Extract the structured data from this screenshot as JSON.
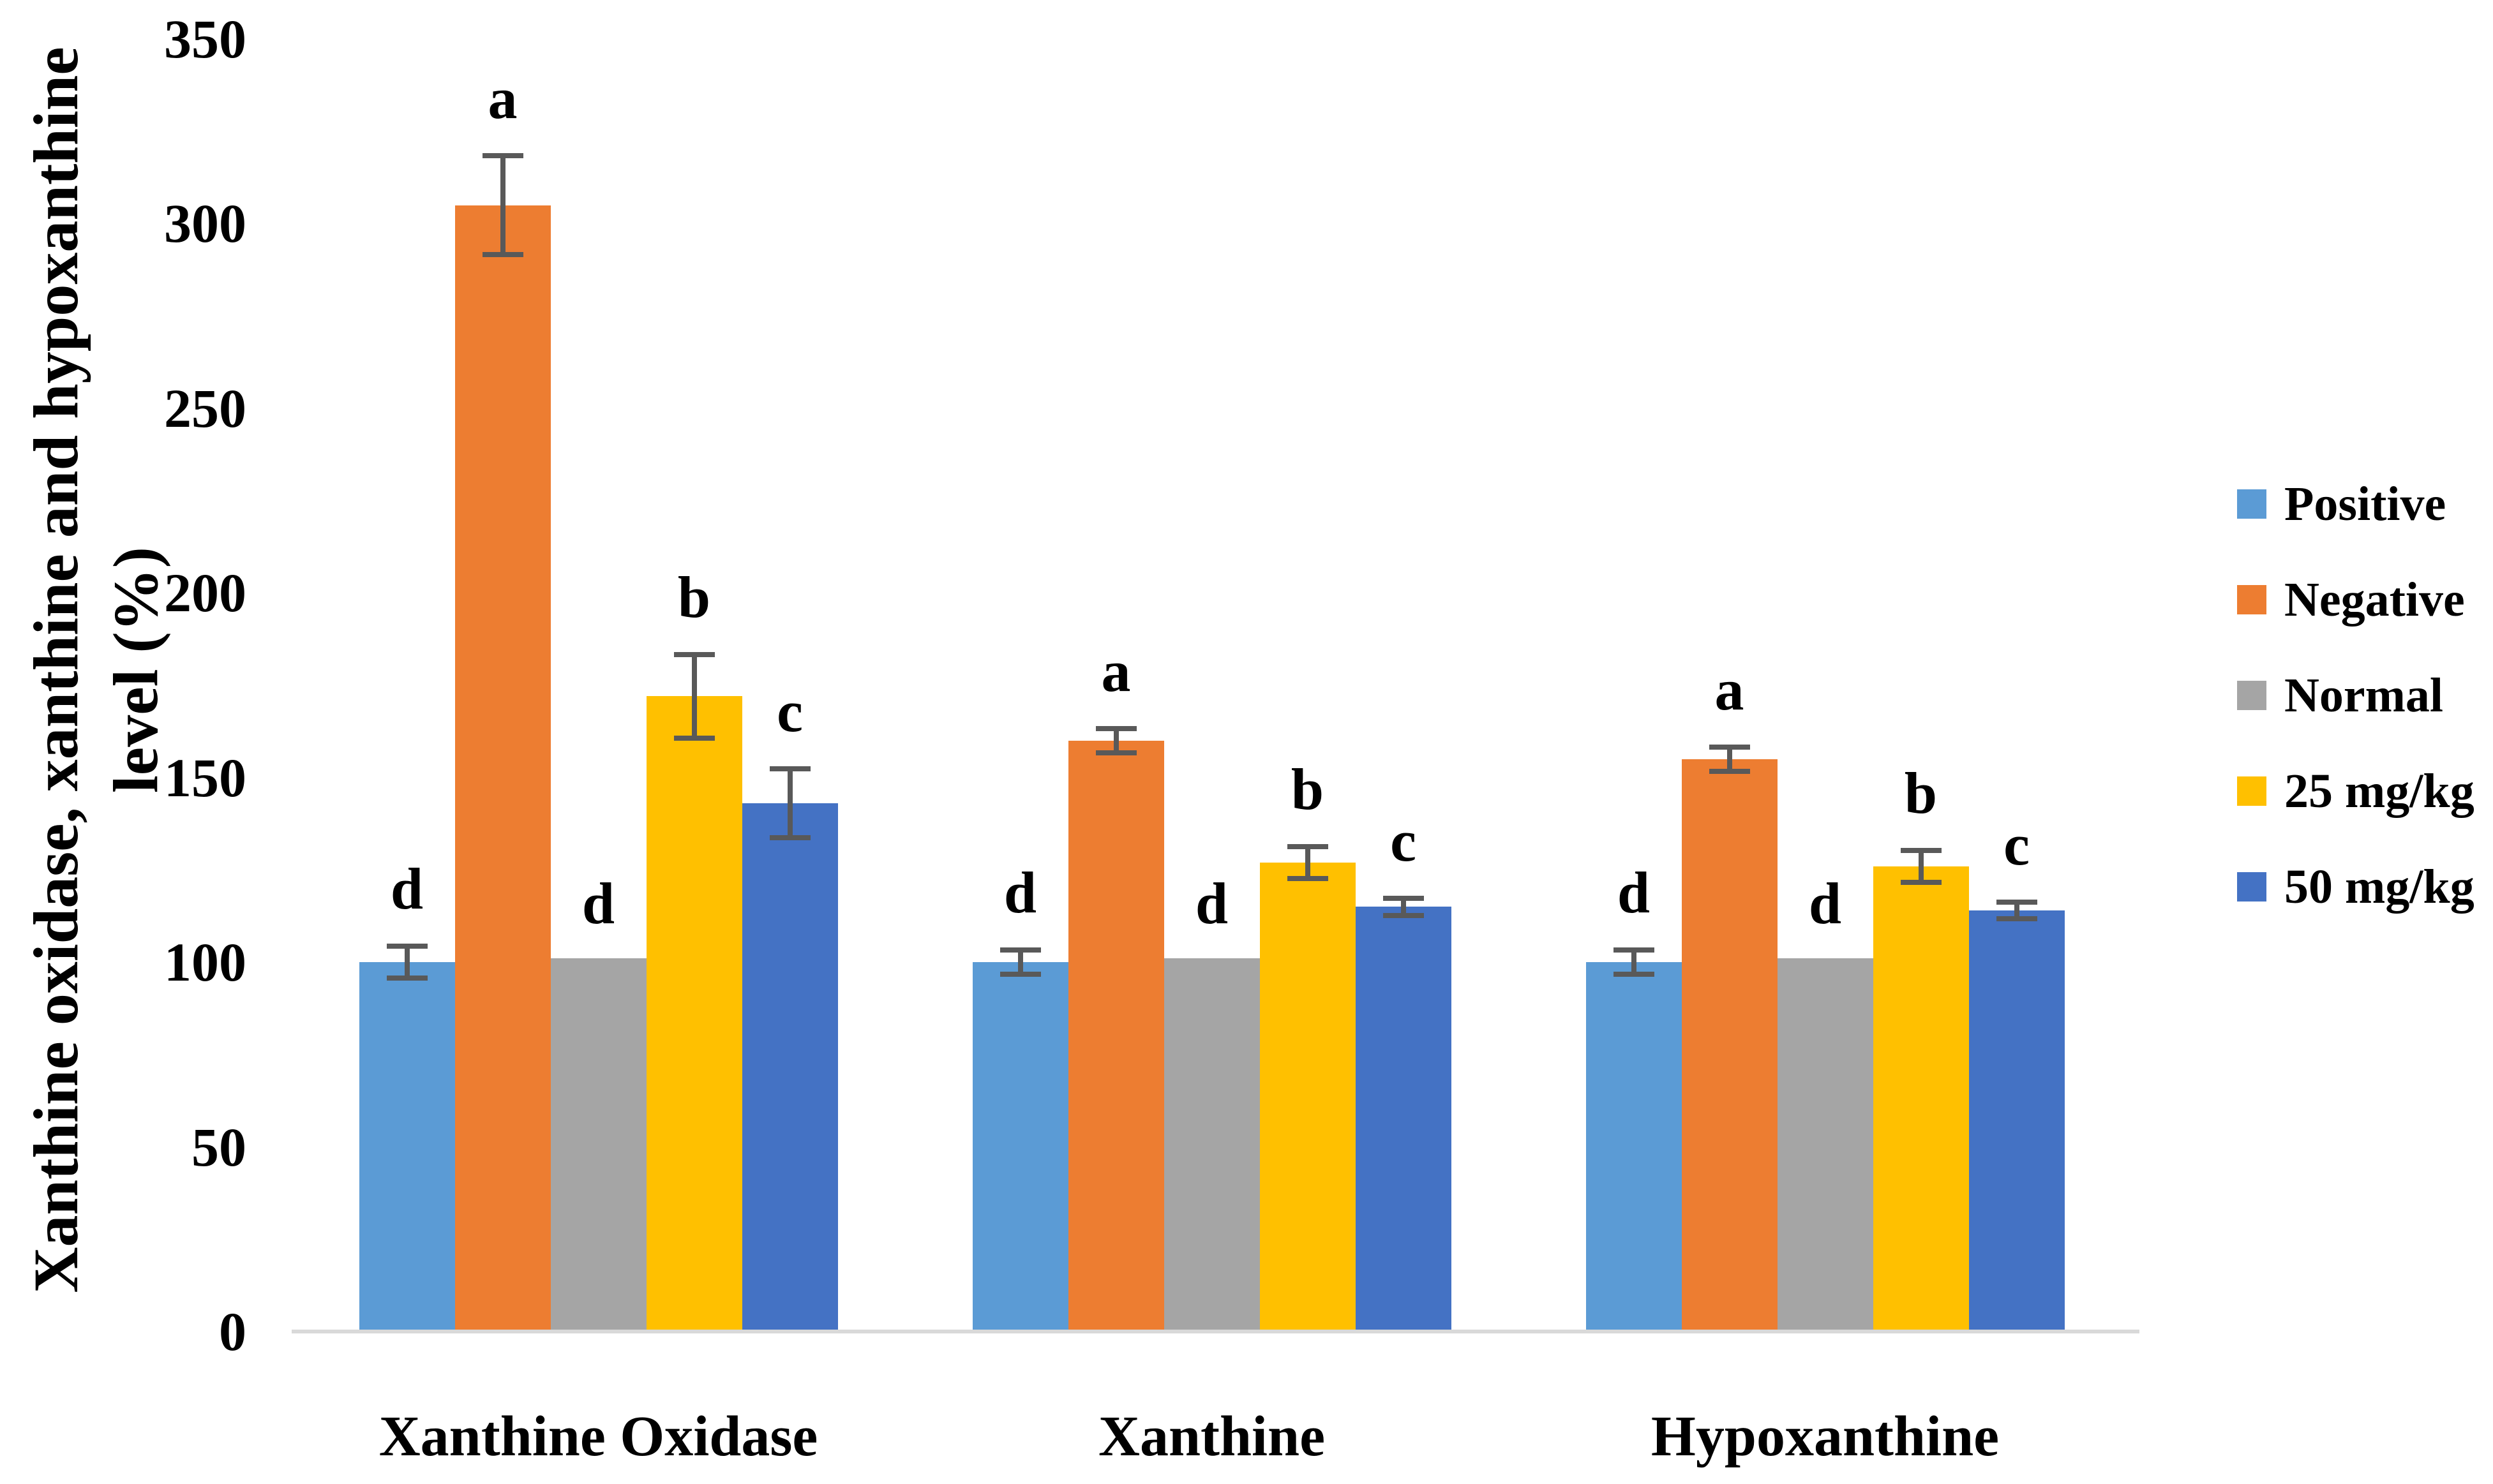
{
  "figure": {
    "background_color": "#FFFFFF",
    "text_color": "#000000",
    "baseline_color": "#D9D9D9",
    "error_bar_color": "#595959"
  },
  "y_axis": {
    "label_line1": "Xanthine oxidase, xanthine and hypoxanthine",
    "label_line2": "level (%)",
    "tick_labels": [
      "0",
      "50",
      "100",
      "150",
      "200",
      "250",
      "300",
      "350"
    ]
  },
  "chart_data": {
    "type": "bar",
    "title": "",
    "xlabel": "",
    "ylabel": "Xanthine oxidase, xanthine and hypoxanthine level (%)",
    "ylim": [
      0,
      350
    ],
    "ytick_interval": 50,
    "grid": false,
    "legend_position": "right",
    "categories": [
      "Xanthine Oxidase",
      "Xanthine",
      "Hypoxanthine"
    ],
    "series": [
      {
        "name": "Positive",
        "color": "#5B9BD5",
        "values": [
          100,
          100,
          100
        ],
        "errors": [
          5,
          4,
          4
        ],
        "sig_letters": [
          "d",
          "d",
          "d"
        ]
      },
      {
        "name": "Negative",
        "color": "#ED7D31",
        "values": [
          305,
          160,
          155
        ],
        "errors": [
          14,
          4,
          4
        ],
        "sig_letters": [
          "a",
          "a",
          "a"
        ]
      },
      {
        "name": "Normal",
        "color": "#A5A5A5",
        "values": [
          101,
          101,
          101
        ],
        "errors": [
          0,
          0,
          0
        ],
        "sig_letters": [
          "d",
          "d",
          "d"
        ]
      },
      {
        "name": "25 mg/kg",
        "color": "#FFC000",
        "values": [
          172,
          127,
          126
        ],
        "errors": [
          12,
          5,
          5
        ],
        "sig_letters": [
          "b",
          "b",
          "b"
        ]
      },
      {
        "name": "50 mg/kg",
        "color": "#4472C4",
        "values": [
          143,
          115,
          114
        ],
        "errors": [
          10,
          3,
          3
        ],
        "sig_letters": [
          "c",
          "c",
          "c"
        ]
      }
    ]
  }
}
